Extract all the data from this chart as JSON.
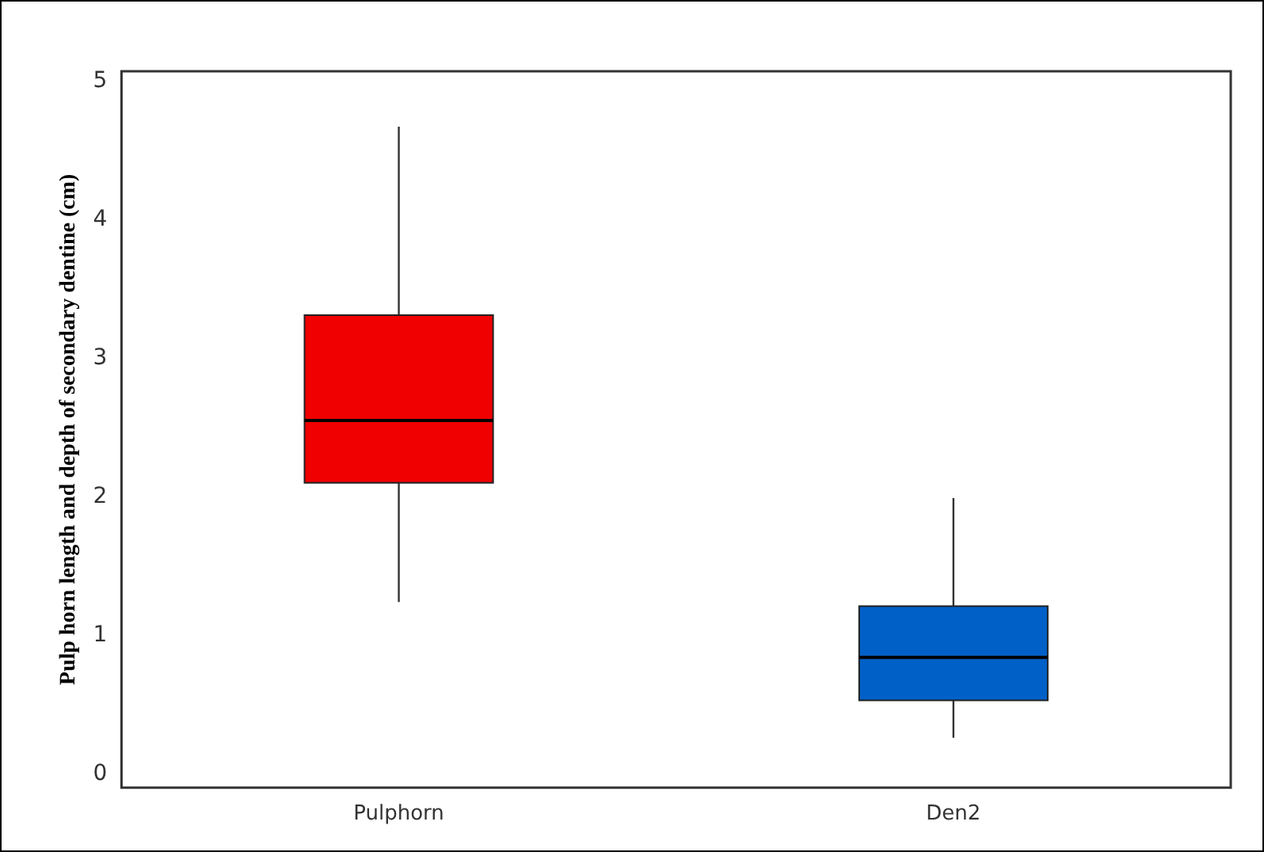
{
  "chart_data": {
    "type": "box",
    "ylabel": "Pulp horn length and depth of secondary dentine (cm)",
    "categories": [
      "Pulphorn",
      "Den2"
    ],
    "colors": [
      "#f00000",
      "#0060c8"
    ],
    "boxes": [
      {
        "low": 1.24,
        "q1": 2.1,
        "median": 2.55,
        "q3": 3.31,
        "high": 4.67
      },
      {
        "low": 0.26,
        "q1": 0.53,
        "median": 0.84,
        "q3": 1.21,
        "high": 1.99
      }
    ],
    "ylim": [
      -0.1,
      5.07
    ],
    "yticks": [
      0,
      1,
      2,
      3,
      4,
      5
    ],
    "grid": false,
    "legend": false
  }
}
